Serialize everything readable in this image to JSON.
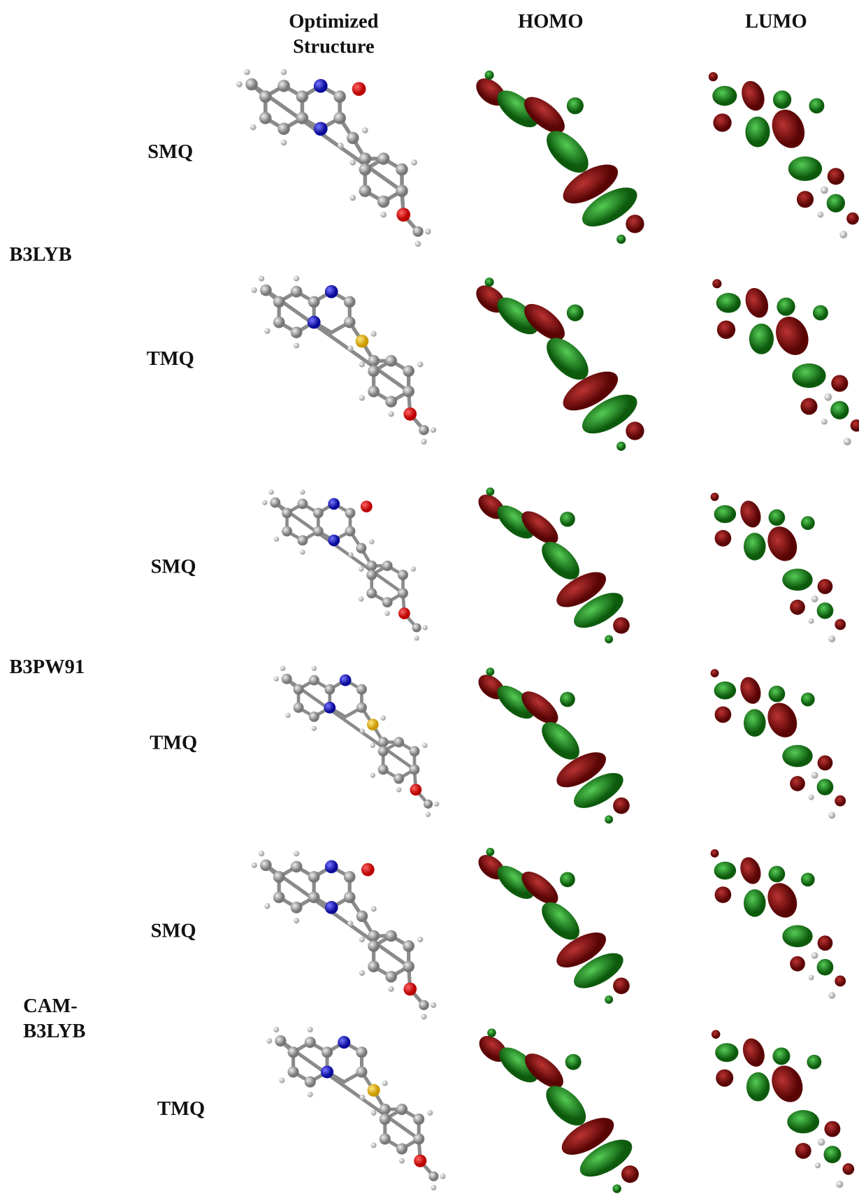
{
  "header": {
    "columns": [
      "Optimized Structure",
      "HOMO",
      "LUMO"
    ]
  },
  "groups": [
    {
      "method": "B3LYB",
      "molecules": [
        "SMQ",
        "TMQ"
      ]
    },
    {
      "method": "B3PW91",
      "molecules": [
        "SMQ",
        "TMQ"
      ]
    },
    {
      "method": "CAM-B3LYB",
      "molecules": [
        "SMQ",
        "TMQ"
      ]
    }
  ]
}
